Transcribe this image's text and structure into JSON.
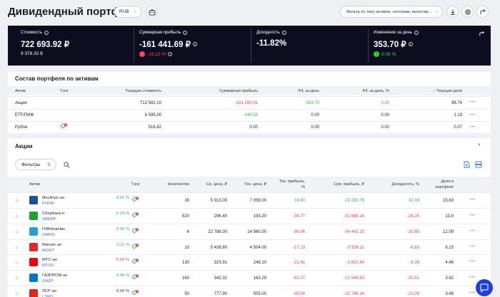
{
  "header": {
    "title": "Дивидендный портфель",
    "currency": "RUB",
    "filter_placeholder": "Фильтр по типу активов, секторам, валютам..."
  },
  "stats": [
    {
      "label": "Стоимость",
      "value": "722 693.92 ₽",
      "sub": "9 378.33 $"
    },
    {
      "label": "Суммарная прибыль",
      "value": "-161 441.69 ₽",
      "sub": "-18.22 %"
    },
    {
      "label": "Доходность",
      "value": "-11.82%"
    },
    {
      "label": "Изменение за день",
      "value": "353.70 ₽",
      "sub": "0.05 %"
    }
  ],
  "composition": {
    "title": "Состав портфеля по активам",
    "headers": [
      "Актив",
      "Тэги",
      "Текущая стоимость",
      "Суммарная прибыль",
      "P/L за день",
      "P/L за день, %",
      "Текущая доля"
    ],
    "rows": [
      {
        "asset": "Акции",
        "value": "713 582.10",
        "profit": "-161 280.91",
        "pl": "353.70",
        "pl_pct": "0.05",
        "share": "98.74"
      },
      {
        "asset": "ETF/ПИФ",
        "value": "8 595.00",
        "profit": "445.59",
        "pl": "0.00",
        "pl_pct": "0.00",
        "share": "1.19"
      },
      {
        "asset": "Рубли",
        "value": "516.82",
        "profit": "0.00",
        "pl": "0.00",
        "pl_pct": "0.00",
        "share": "0.07"
      }
    ]
  },
  "stocks": {
    "title": "Акции",
    "filters_label": "Фильтры",
    "headers": [
      "Актив",
      "Тэги",
      "Количество",
      "Ср. цена, ₽",
      "Тек. цена, ₽",
      "Тек. прибыль, %",
      "Сум. прибыль, ₽",
      "Доходность, %",
      "Доля в портфеле"
    ],
    "rows": [
      {
        "name": "ФосАгро ао",
        "ticker": "PHOR",
        "chg": "0.01 %",
        "qty": "16",
        "avg": "5 913.00",
        "cur": "7 059.00",
        "cur_profit": "19.40",
        "sum_profit": "29 282.76",
        "yield": "42.08",
        "share": "15.63",
        "logo": "#1b4f9c"
      },
      {
        "name": "Сбербанк-п",
        "ticker": "SBERP",
        "chg": "0.23 %",
        "qty": "520",
        "avg": "296.40",
        "cur": "193.20",
        "cur_profit": "-34.77",
        "sum_profit": "-52 688.14",
        "yield": "-26.24",
        "share": "13.9",
        "logo": "#21a038"
      },
      {
        "name": "ГМКНорНик",
        "ticker": "GMKN",
        "chg": "0.05 %",
        "qty": "6",
        "avg": "22 788.00",
        "cur": "14 560.00",
        "cur_profit": "-36.06",
        "sum_profit": "-34 442.15",
        "yield": "-20.65",
        "share": "12.09",
        "logo": "#2a9fd6"
      },
      {
        "name": "Магнит ао",
        "ticker": "MGNT",
        "chg": "0.11 %",
        "qty": "10",
        "avg": "5 438.80",
        "cur": "4 504.00",
        "cur_profit": "-17.13",
        "sum_profit": "-5 506.11",
        "yield": "-6.63",
        "share": "6.23",
        "logo": "#e3262f"
      },
      {
        "name": "МТС-ао",
        "ticker": "MTSS",
        "chg": "-0.04 %",
        "qty": "130",
        "avg": "315.91",
        "cur": "248.10",
        "cur_profit": "-21.41",
        "sum_profit": "-3 822.84",
        "yield": "-6.19",
        "share": "4.46",
        "logo": "#e30611"
      },
      {
        "name": "ГАЗПРОМ ао",
        "ticker": "GAZP",
        "chg": "0.08 %",
        "qty": "160",
        "avg": "342.32",
        "cur": "163.29",
        "cur_profit": "-52.27",
        "sum_profit": "-21 044.53",
        "yield": "-30.51",
        "share": "3.62",
        "logo": "#0079c2"
      },
      {
        "name": "ЛСР ао",
        "ticker": "LSRG",
        "chg": "0.00 %",
        "qty": "50",
        "avg": "777.90",
        "cur": "505.00",
        "cur_profit": "-35.04",
        "sum_profit": "-12 746.14",
        "yield": "-21.09",
        "share": "3.49",
        "logo": "#e2231a"
      }
    ]
  },
  "colors": {
    "positive": "#35b84a",
    "negative": "#ef3e55",
    "accent": "#3a6fd8"
  }
}
